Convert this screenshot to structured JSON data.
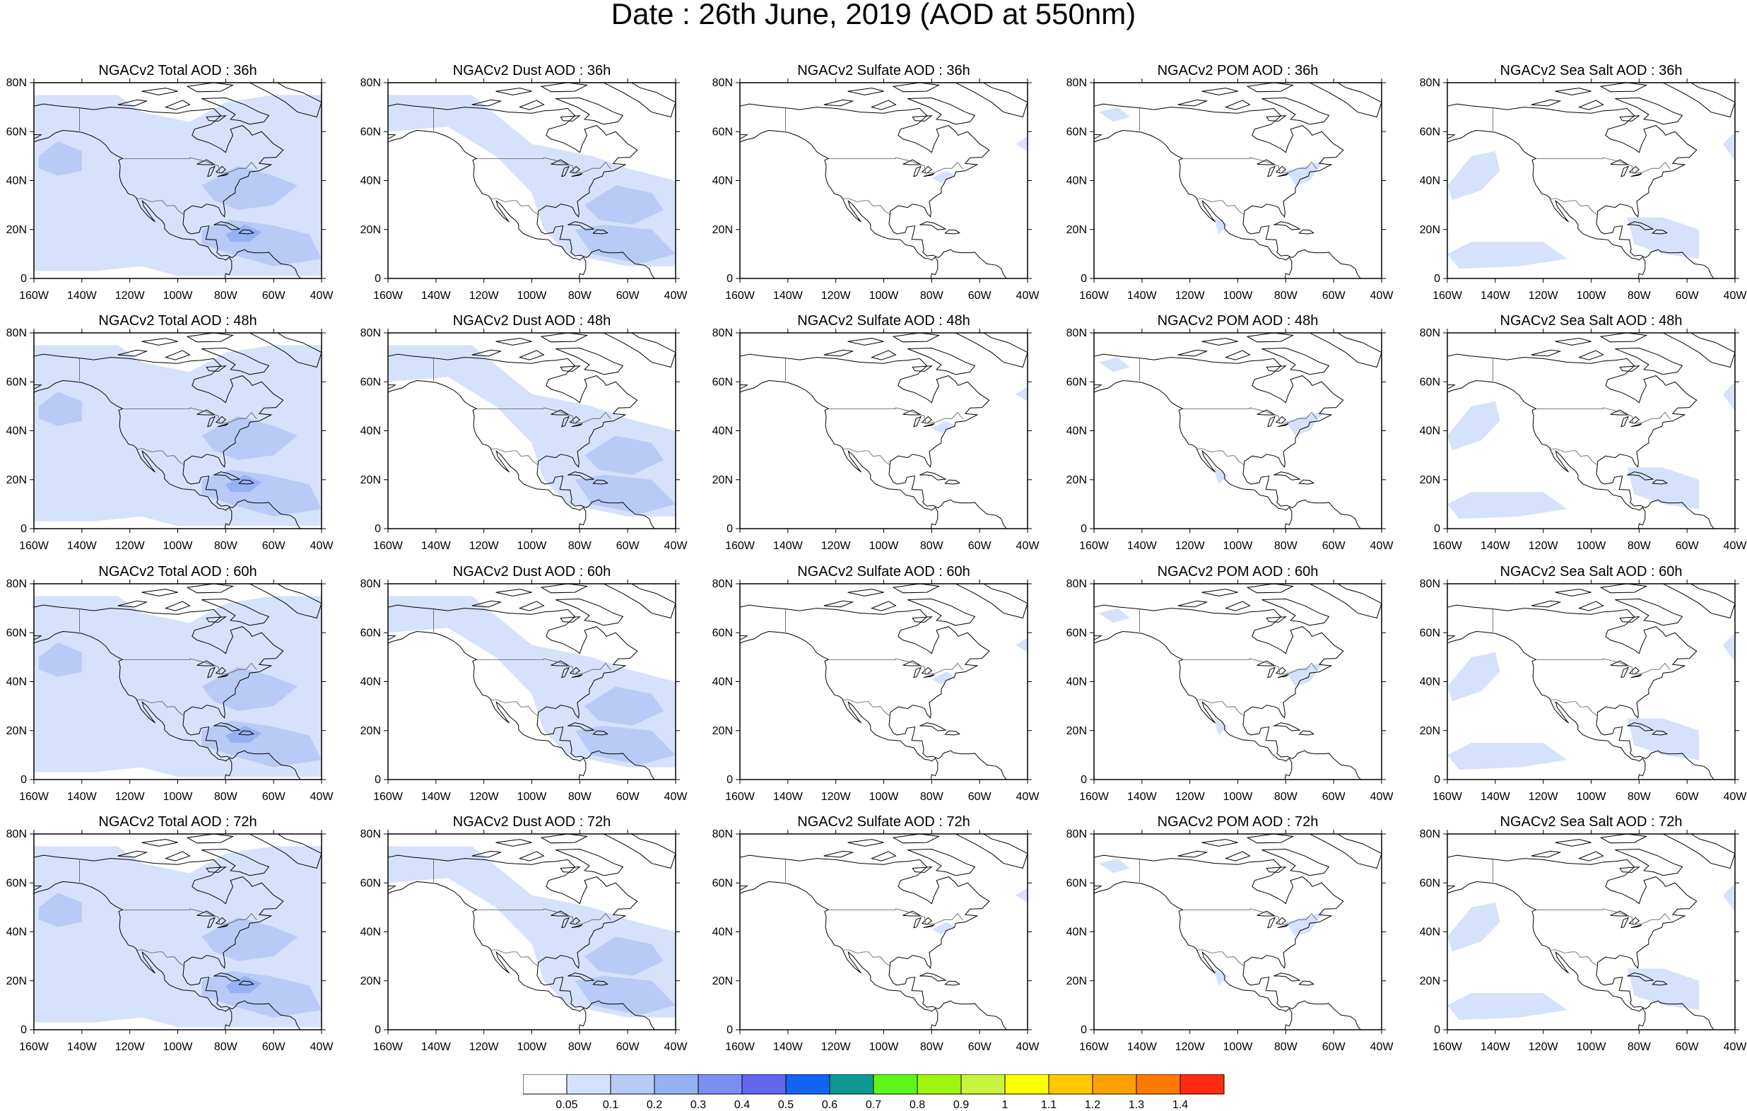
{
  "title": "Date : 26th June, 2019 (AOD at 550nm)",
  "panels": [
    {
      "title": "NGACv2 Total AOD : 36h",
      "species": "total",
      "fh": 0
    },
    {
      "title": "NGACv2 Dust AOD : 36h",
      "species": "dust",
      "fh": 0
    },
    {
      "title": "NGACv2 Sulfate AOD : 36h",
      "species": "sulfate",
      "fh": 0
    },
    {
      "title": "NGACv2 POM AOD : 36h",
      "species": "pom",
      "fh": 0
    },
    {
      "title": "NGACv2 Sea Salt AOD : 36h",
      "species": "seasalt",
      "fh": 0
    },
    {
      "title": "NGACv2 Total AOD : 48h",
      "species": "total",
      "fh": 1
    },
    {
      "title": "NGACv2 Dust AOD : 48h",
      "species": "dust",
      "fh": 1
    },
    {
      "title": "NGACv2 Sulfate AOD : 48h",
      "species": "sulfate",
      "fh": 1
    },
    {
      "title": "NGACv2 POM AOD : 48h",
      "species": "pom",
      "fh": 1
    },
    {
      "title": "NGACv2 Sea Salt AOD : 48h",
      "species": "seasalt",
      "fh": 1
    },
    {
      "title": "NGACv2 Total AOD : 60h",
      "species": "total",
      "fh": 2
    },
    {
      "title": "NGACv2 Dust AOD : 60h",
      "species": "dust",
      "fh": 2
    },
    {
      "title": "NGACv2 Sulfate AOD : 60h",
      "species": "sulfate",
      "fh": 2
    },
    {
      "title": "NGACv2 POM AOD : 60h",
      "species": "pom",
      "fh": 2
    },
    {
      "title": "NGACv2 Sea Salt AOD : 60h",
      "species": "seasalt",
      "fh": 2
    },
    {
      "title": "NGACv2 Total AOD : 72h",
      "species": "total",
      "fh": 3
    },
    {
      "title": "NGACv2 Dust AOD : 72h",
      "species": "dust",
      "fh": 3
    },
    {
      "title": "NGACv2 Sulfate AOD : 72h",
      "species": "sulfate",
      "fh": 3
    },
    {
      "title": "NGACv2 POM AOD : 72h",
      "species": "pom",
      "fh": 3
    },
    {
      "title": "NGACv2 Sea Salt  AOD : 72h",
      "species": "seasalt",
      "fh": 3
    }
  ],
  "lat_ticks": [
    "80N",
    "60N",
    "40N",
    "20N",
    "0"
  ],
  "lon_ticks": [
    "160W",
    "140W",
    "120W",
    "100W",
    "80W",
    "60W",
    "40W"
  ],
  "map_extent": {
    "lon": [
      -160,
      -40
    ],
    "lat": [
      0,
      80
    ]
  },
  "colorbar": {
    "colors": [
      "#ffffff",
      "#d6e2fb",
      "#b8cbf6",
      "#96b1f3",
      "#7c8ef2",
      "#6266ec",
      "#1264f5",
      "#0e9990",
      "#5ff617",
      "#9ff50f",
      "#c8f33f",
      "#ffff00",
      "#ffc800",
      "#ffa000",
      "#ff7a00",
      "#ff2a0f"
    ],
    "labels": [
      "0.05",
      "0.1",
      "0.2",
      "0.3",
      "0.4",
      "0.5",
      "0.6",
      "0.7",
      "0.8",
      "0.9",
      "1",
      "1.1",
      "1.2",
      "1.3",
      "1.4"
    ]
  },
  "plume_colors": {
    "light": "#d6e2fb",
    "mid": "#b8cbf6",
    "dark": "#96b1f3"
  }
}
